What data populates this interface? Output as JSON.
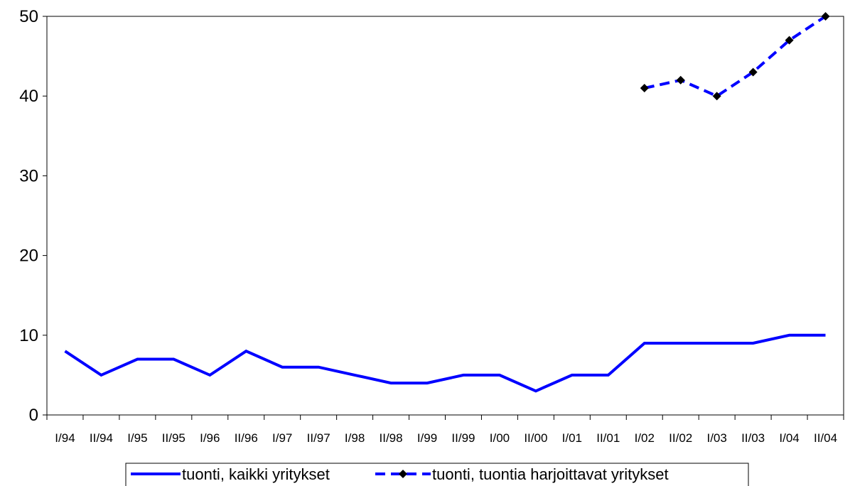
{
  "chart_data": {
    "type": "line",
    "categories": [
      "I/94",
      "II/94",
      "I/95",
      "II/95",
      "I/96",
      "II/96",
      "I/97",
      "II/97",
      "I/98",
      "II/98",
      "I/99",
      "II/99",
      "I/00",
      "II/00",
      "I/01",
      "II/01",
      "I/02",
      "II/02",
      "I/03",
      "II/03",
      "I/04",
      "II/04"
    ],
    "series": [
      {
        "name": "tuonti, kaikki yritykset",
        "values": [
          8,
          5,
          7,
          7,
          5,
          8,
          6,
          6,
          5,
          4,
          4,
          5,
          5,
          3,
          5,
          5,
          9,
          9,
          9,
          9,
          10,
          10
        ],
        "color": "#0000ff",
        "style": "solid"
      },
      {
        "name": "tuonti, tuontia harjoittavat yritykset",
        "values": [
          null,
          null,
          null,
          null,
          null,
          null,
          null,
          null,
          null,
          null,
          null,
          null,
          null,
          null,
          null,
          null,
          41,
          42,
          40,
          43,
          47,
          50
        ],
        "color": "#0000ff",
        "style": "dashed",
        "marker": "diamond",
        "marker_color": "#000000"
      }
    ],
    "ylim": [
      0,
      50
    ],
    "yticks": [
      0,
      10,
      20,
      30,
      40,
      50
    ],
    "grid": false,
    "legend_position": "bottom"
  }
}
